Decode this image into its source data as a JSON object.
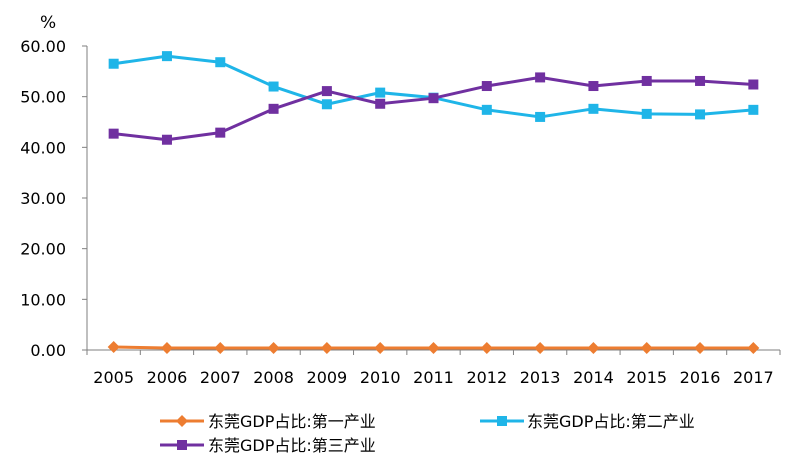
{
  "chart_data": {
    "type": "line",
    "title": "",
    "ylabel": "%",
    "xlabel": "",
    "x": [
      "2005",
      "2006",
      "2007",
      "2008",
      "2009",
      "2010",
      "2011",
      "2012",
      "2013",
      "2014",
      "2015",
      "2016",
      "2017"
    ],
    "ylim": [
      0,
      60
    ],
    "yticks": [
      "0.00",
      "10.00",
      "20.00",
      "30.00",
      "40.00",
      "50.00",
      "60.00"
    ],
    "grid": false,
    "legend": "bottom",
    "series": [
      {
        "name": "东莞GDP占比:第一产业",
        "color": "#ED7D31",
        "marker": "diamond",
        "values": [
          0.6,
          0.4,
          0.4,
          0.4,
          0.4,
          0.4,
          0.4,
          0.4,
          0.4,
          0.4,
          0.4,
          0.4,
          0.4
        ]
      },
      {
        "name": "东莞GDP占比:第二产业",
        "color": "#1FB5E8",
        "marker": "square",
        "values": [
          56.5,
          58.0,
          56.8,
          52.0,
          48.5,
          50.8,
          49.8,
          47.4,
          46.0,
          47.6,
          46.6,
          46.5,
          47.4
        ]
      },
      {
        "name": "东莞GDP占比:第三产业",
        "color": "#7030A0",
        "marker": "square",
        "values": [
          42.7,
          41.5,
          42.9,
          47.6,
          51.1,
          48.6,
          49.7,
          52.1,
          53.8,
          52.1,
          53.1,
          53.1,
          52.4
        ]
      }
    ]
  }
}
